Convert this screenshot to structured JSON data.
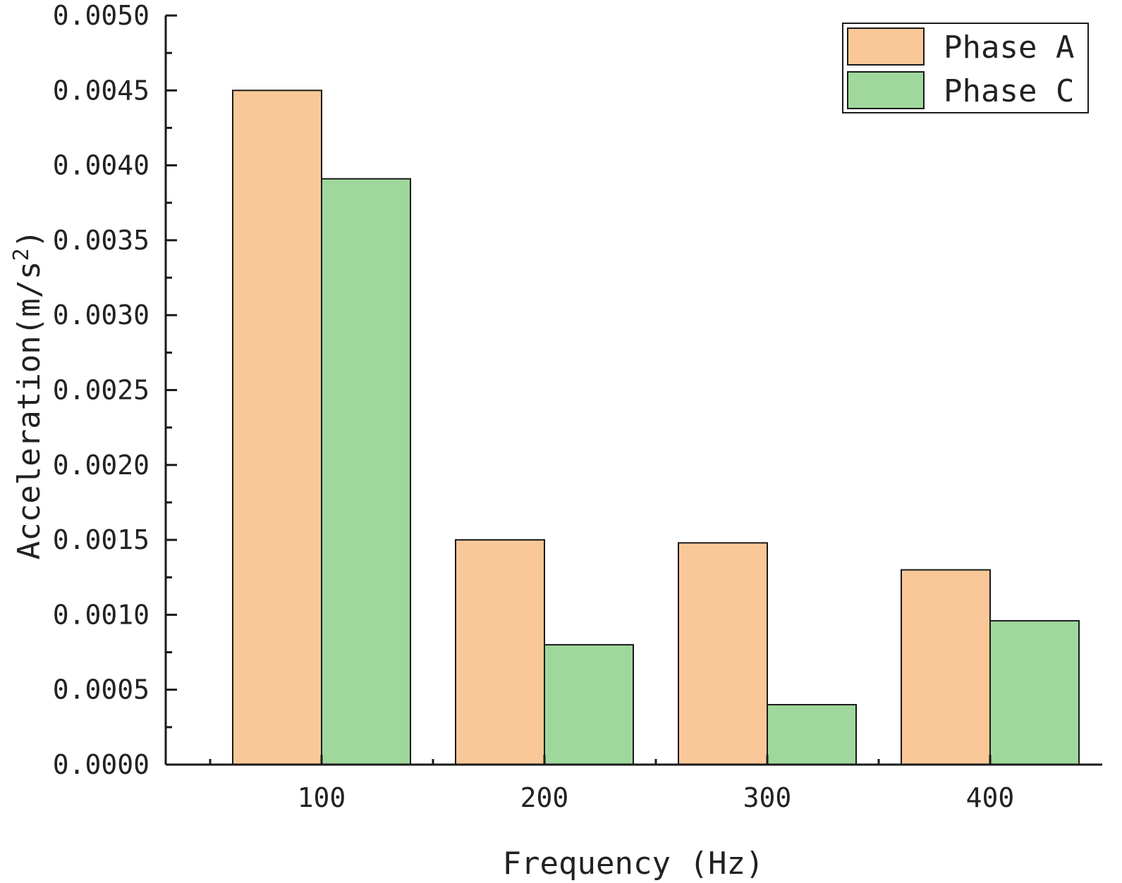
{
  "chart_data": {
    "type": "bar",
    "categories": [
      "100",
      "200",
      "300",
      "400"
    ],
    "series": [
      {
        "name": "Phase A",
        "values": [
          0.0045,
          0.0015,
          0.00148,
          0.0013
        ],
        "color": "#fac898"
      },
      {
        "name": "Phase C",
        "values": [
          0.00391,
          0.0008,
          0.0004,
          0.00096
        ],
        "color": "#9fd89c"
      }
    ],
    "xlabel": "Frequency (Hz)",
    "ylabel": "Acceleration(m/s",
    "ylabel_superscript": "2",
    "ylabel_suffix": ")",
    "ylim": [
      0,
      0.005
    ],
    "yticks": [
      "0.0000",
      "0.0005",
      "0.0010",
      "0.0015",
      "0.0020",
      "0.0025",
      "0.0030",
      "0.0035",
      "0.0040",
      "0.0045",
      "0.0050"
    ],
    "grid": false,
    "legend_position": "top-right"
  }
}
